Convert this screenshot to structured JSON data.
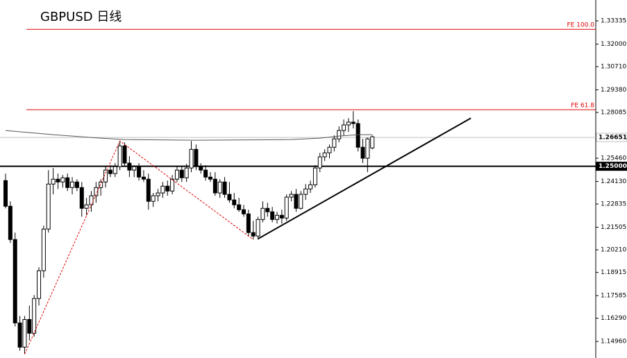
{
  "chart_data": {
    "type": "candlestick",
    "title": "GBPUSD 日线",
    "ylim": [
      1.1401,
      1.3453
    ],
    "yticks": [
      1.33335,
      {
        "value": 1.32,
        "label": "1.32000"
      },
      {
        "value": 1.3071,
        "label": "1.30710"
      },
      {
        "value": 1.2938,
        "label": "1.29380"
      },
      1.28085,
      {
        "value": 1.2546,
        "label": "1.25460"
      },
      {
        "value": 1.2413,
        "label": "1.24130"
      },
      1.22835,
      1.21505,
      {
        "value": 1.2021,
        "label": "1.20210"
      },
      1.18915,
      1.17585,
      {
        "value": 1.1629,
        "label": "1.16290"
      },
      {
        "value": 1.1496,
        "label": "1.14960"
      }
    ],
    "up_color": "#ffffff",
    "down_color": "#000000",
    "open": [
      1.2418,
      1.2271,
      1.208,
      1.1602,
      1.1463,
      1.1622,
      1.1543,
      1.1742,
      1.1901,
      1.214,
      1.2398,
      1.2426,
      1.241,
      1.2434,
      1.2378,
      1.241,
      1.2378,
      1.2259,
      1.2279,
      1.2331,
      1.2378,
      1.241,
      1.2478,
      1.2458,
      1.2498,
      1.2617,
      1.2518,
      1.2478,
      1.2498,
      1.2438,
      1.2426,
      1.2299,
      1.2331,
      1.2347,
      1.2386,
      1.2358,
      1.2426,
      1.2478,
      1.2434,
      1.249,
      1.2597,
      1.2498,
      1.2478,
      1.2438,
      1.2426,
      1.2347,
      1.241,
      1.2339,
      1.2307,
      1.2279,
      1.2251,
      1.2227,
      1.212,
      1.21,
      1.2195,
      1.2259,
      1.2239,
      1.2195,
      1.2219,
      1.2203,
      1.2323,
      1.2339,
      1.2259,
      1.2339,
      1.237,
      1.2394,
      1.249,
      1.2554,
      1.2577,
      1.2609,
      1.2657,
      1.2705,
      1.2737,
      1.2753,
      1.2745,
      1.2609,
      1.2546,
      1.2605
    ],
    "high": [
      1.2458,
      1.2299,
      1.212,
      1.1642,
      1.1642,
      1.1702,
      1.1762,
      1.1921,
      1.216,
      1.2478,
      1.249,
      1.2458,
      1.245,
      1.2458,
      1.2438,
      1.2426,
      1.241,
      1.2319,
      1.2358,
      1.241,
      1.2426,
      1.2498,
      1.2506,
      1.2518,
      1.2645,
      1.2637,
      1.2558,
      1.2506,
      1.2518,
      1.2478,
      1.2458,
      1.2347,
      1.237,
      1.241,
      1.2418,
      1.245,
      1.2498,
      1.2498,
      1.2514,
      1.2645,
      1.2625,
      1.2518,
      1.2506,
      1.2466,
      1.2466,
      1.2426,
      1.2438,
      1.241,
      1.2347,
      1.2319,
      1.2279,
      1.2251,
      1.2187,
      1.2211,
      1.2299,
      1.2291,
      1.2267,
      1.2239,
      1.2251,
      1.2339,
      1.2358,
      1.237,
      1.2358,
      1.2398,
      1.2418,
      1.2506,
      1.2577,
      1.2597,
      1.2625,
      1.2677,
      1.2729,
      1.2768,
      1.2776,
      1.2816,
      1.2768,
      1.2657,
      1.2665,
      1.2677
    ],
    "low": [
      1.2259,
      1.206,
      1.1582,
      1.1443,
      1.1423,
      1.1503,
      1.1523,
      1.1702,
      1.1861,
      1.212,
      1.2339,
      1.237,
      1.2378,
      1.2358,
      1.2339,
      1.2358,
      1.2211,
      1.2219,
      1.2239,
      1.2291,
      1.2331,
      1.2378,
      1.2438,
      1.2438,
      1.2478,
      1.2498,
      1.2438,
      1.2438,
      1.2418,
      1.241,
      1.2251,
      1.2267,
      1.2299,
      1.2319,
      1.2331,
      1.2339,
      1.241,
      1.241,
      1.241,
      1.2466,
      1.2478,
      1.2458,
      1.2418,
      1.241,
      1.2331,
      1.2319,
      1.2319,
      1.2291,
      1.2259,
      1.2239,
      1.2211,
      1.21,
      1.208,
      1.208,
      1.2179,
      1.2211,
      1.2179,
      1.2171,
      1.2171,
      1.2187,
      1.2299,
      1.2239,
      1.2251,
      1.2307,
      1.2347,
      1.2378,
      1.2466,
      1.253,
      1.2546,
      1.2585,
      1.2637,
      1.2677,
      1.2697,
      1.2717,
      1.2585,
      1.2518,
      1.2466,
      1.2597
    ],
    "close": [
      1.2271,
      1.208,
      1.1602,
      1.1463,
      1.1622,
      1.1543,
      1.1742,
      1.1901,
      1.214,
      1.2398,
      1.2426,
      1.241,
      1.2434,
      1.2378,
      1.241,
      1.2378,
      1.2259,
      1.2279,
      1.2331,
      1.2378,
      1.241,
      1.2478,
      1.2458,
      1.2498,
      1.2617,
      1.2518,
      1.2478,
      1.2498,
      1.2438,
      1.2426,
      1.2299,
      1.2331,
      1.2347,
      1.2386,
      1.2358,
      1.2426,
      1.2478,
      1.2434,
      1.249,
      1.2597,
      1.2498,
      1.2478,
      1.2438,
      1.2426,
      1.2347,
      1.241,
      1.2339,
      1.2307,
      1.2279,
      1.2251,
      1.2227,
      1.212,
      1.21,
      1.2195,
      1.2259,
      1.2239,
      1.2195,
      1.2219,
      1.2203,
      1.2323,
      1.2339,
      1.2259,
      1.2339,
      1.237,
      1.2394,
      1.249,
      1.2554,
      1.2577,
      1.2609,
      1.2657,
      1.2705,
      1.2737,
      1.2753,
      1.2745,
      1.2609,
      1.2546,
      1.2657,
      1.2669
    ],
    "lines": [
      {
        "x": [
          0,
          10,
          20,
          25,
          40,
          60,
          66,
          70,
          74,
          77
        ],
        "values": [
          1.2705,
          1.2681,
          1.2661,
          1.2653,
          1.2649,
          1.2653,
          1.2661,
          1.2673,
          1.2681,
          1.2681
        ],
        "color": "#555555",
        "width": 1,
        "dash": false
      },
      {
        "x": [
          53,
          97.7
        ],
        "values": [
          1.2084,
          1.2776
        ],
        "color": "#000000",
        "width": 2,
        "dash": false
      },
      {
        "x": [
          4,
          24,
          52
        ],
        "values": [
          1.1423,
          1.2645,
          1.208
        ],
        "color": "#e00000",
        "width": 1,
        "dash": true
      }
    ],
    "levels": [
      {
        "label": "FE 100.0",
        "value": 1.3285,
        "color": "#e00000"
      },
      {
        "label": "FE 61.8",
        "value": 1.2824,
        "color": "#e00000"
      }
    ],
    "price_lines": [
      {
        "value": 1.26651,
        "label": "1.26651",
        "color": "#c0c0c0"
      },
      {
        "value": 1.25,
        "label": "1.25000",
        "color": "#000000"
      }
    ]
  }
}
